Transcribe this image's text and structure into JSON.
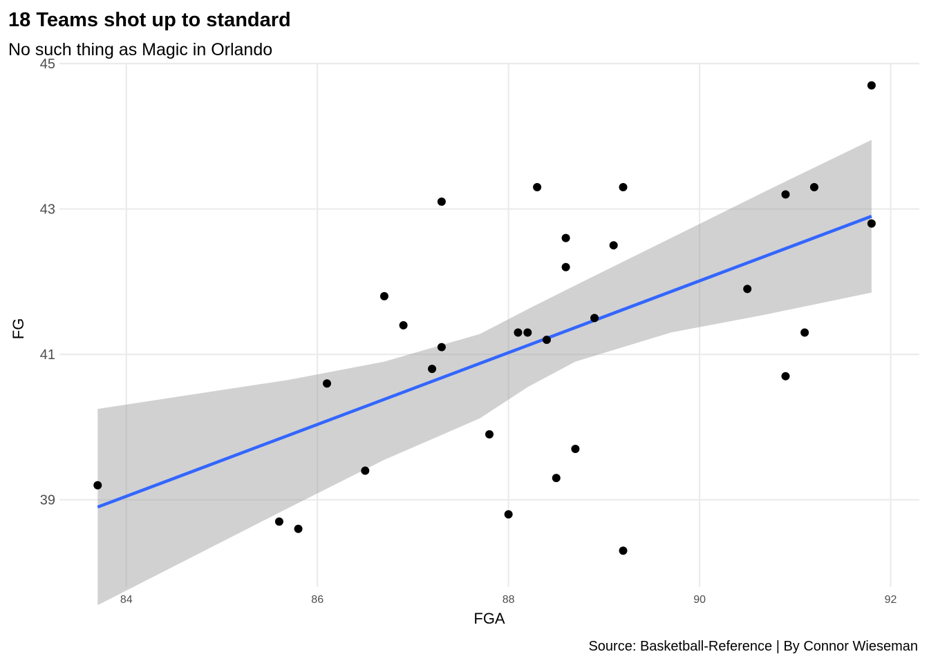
{
  "chart_data": {
    "type": "scatter",
    "title": "18 Teams shot up to standard",
    "subtitle": "No such thing as Magic in Orlando",
    "caption": "Source: Basketball-Reference | By Connor Wieseman",
    "xlabel": "FGA",
    "ylabel": "FG",
    "xlim": [
      83.3,
      92.3
    ],
    "ylim": [
      37.8,
      45.0
    ],
    "x_ticks": [
      84,
      86,
      88,
      90,
      92
    ],
    "y_ticks": [
      39,
      41,
      43,
      45
    ],
    "grid": true,
    "legend": "none",
    "colors": {
      "points": "#000000",
      "trend_line": "#3366ff",
      "band": "#999999"
    },
    "points": [
      {
        "x": 83.7,
        "y": 39.2
      },
      {
        "x": 85.6,
        "y": 38.7
      },
      {
        "x": 85.8,
        "y": 38.6
      },
      {
        "x": 86.1,
        "y": 40.6
      },
      {
        "x": 86.5,
        "y": 39.4
      },
      {
        "x": 86.7,
        "y": 41.8
      },
      {
        "x": 86.9,
        "y": 41.4
      },
      {
        "x": 87.2,
        "y": 40.8
      },
      {
        "x": 87.3,
        "y": 41.1
      },
      {
        "x": 87.3,
        "y": 43.1
      },
      {
        "x": 87.8,
        "y": 39.9
      },
      {
        "x": 88.0,
        "y": 38.8
      },
      {
        "x": 88.1,
        "y": 41.3
      },
      {
        "x": 88.2,
        "y": 41.3
      },
      {
        "x": 88.3,
        "y": 43.3
      },
      {
        "x": 88.4,
        "y": 41.2
      },
      {
        "x": 88.5,
        "y": 39.3
      },
      {
        "x": 88.6,
        "y": 42.6
      },
      {
        "x": 88.6,
        "y": 42.2
      },
      {
        "x": 88.7,
        "y": 39.7
      },
      {
        "x": 88.9,
        "y": 41.5
      },
      {
        "x": 89.1,
        "y": 42.5
      },
      {
        "x": 89.2,
        "y": 43.3
      },
      {
        "x": 89.2,
        "y": 38.3
      },
      {
        "x": 90.5,
        "y": 41.9
      },
      {
        "x": 90.9,
        "y": 43.2
      },
      {
        "x": 90.9,
        "y": 40.7
      },
      {
        "x": 91.1,
        "y": 41.3
      },
      {
        "x": 91.2,
        "y": 43.3
      },
      {
        "x": 91.8,
        "y": 44.7
      },
      {
        "x": 91.8,
        "y": 42.8
      }
    ],
    "trend_line": {
      "method": "linear",
      "x": [
        83.7,
        91.8
      ],
      "y": [
        38.9,
        42.9
      ]
    },
    "confidence_band": [
      {
        "x": 83.7,
        "lower": 37.55,
        "upper": 40.25
      },
      {
        "x": 84.7,
        "lower": 38.22,
        "upper": 40.45
      },
      {
        "x": 85.7,
        "lower": 38.89,
        "upper": 40.65
      },
      {
        "x": 86.7,
        "lower": 39.55,
        "upper": 40.9
      },
      {
        "x": 87.7,
        "lower": 40.12,
        "upper": 41.28
      },
      {
        "x": 88.2,
        "lower": 40.55,
        "upper": 41.62
      },
      {
        "x": 88.7,
        "lower": 40.9,
        "upper": 41.95
      },
      {
        "x": 89.7,
        "lower": 41.3,
        "upper": 42.6
      },
      {
        "x": 90.7,
        "lower": 41.55,
        "upper": 43.25
      },
      {
        "x": 91.8,
        "lower": 41.85,
        "upper": 43.95
      }
    ]
  }
}
